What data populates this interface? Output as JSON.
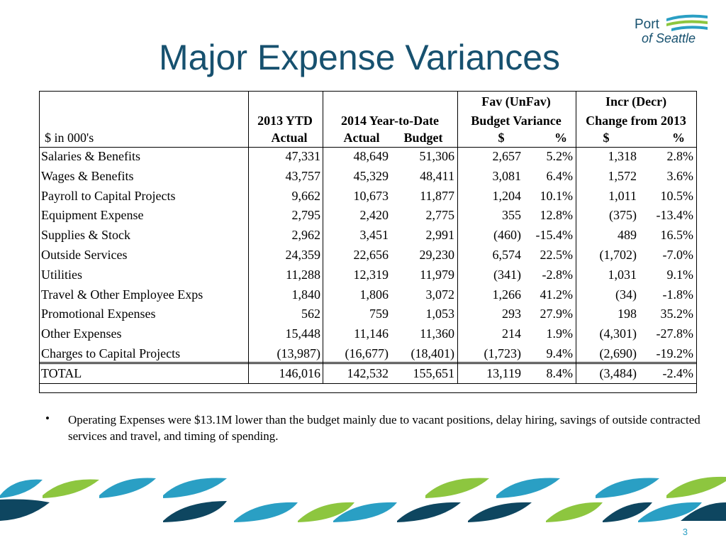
{
  "title": "Major Expense Variances",
  "logo": {
    "line1": "Port",
    "line2": "of Seattle"
  },
  "table": {
    "header": [
      "Fav (UnFav)",
      "Incr (Decr)",
      "2013 YTD",
      "2014 Year-to-Date",
      "Budget Variance",
      "Change from 2013",
      "$ in 000's",
      "Actual",
      "Actual",
      "Budget",
      "$",
      "%",
      "$",
      "%"
    ],
    "rows": [
      [
        "Salaries & Benefits",
        "47,331",
        "48,649",
        "51,306",
        "2,657",
        "5.2%",
        "1,318",
        "2.8%"
      ],
      [
        "Wages & Benefits",
        "43,757",
        "45,329",
        "48,411",
        "3,081",
        "6.4%",
        "1,572",
        "3.6%"
      ],
      [
        "Payroll to Capital Projects",
        "9,662",
        "10,673",
        "11,877",
        "1,204",
        "10.1%",
        "1,011",
        "10.5%"
      ],
      [
        "Equipment Expense",
        "2,795",
        "2,420",
        "2,775",
        "355",
        "12.8%",
        "(375)",
        "-13.4%"
      ],
      [
        "Supplies & Stock",
        "2,962",
        "3,451",
        "2,991",
        "(460)",
        "-15.4%",
        "489",
        "16.5%"
      ],
      [
        "Outside Services",
        "24,359",
        "22,656",
        "29,230",
        "6,574",
        "22.5%",
        "(1,702)",
        "-7.0%"
      ],
      [
        "Utilities",
        "11,288",
        "12,319",
        "11,979",
        "(341)",
        "-2.8%",
        "1,031",
        "9.1%"
      ],
      [
        "Travel & Other Employee Exps",
        "1,840",
        "1,806",
        "3,072",
        "1,266",
        "41.2%",
        "(34)",
        "-1.8%"
      ],
      [
        "Promotional Expenses",
        "562",
        "759",
        "1,053",
        "293",
        "27.9%",
        "198",
        "35.2%"
      ],
      [
        "Other Expenses",
        "15,448",
        "11,146",
        "11,360",
        "214",
        "1.9%",
        "(4,301)",
        "-27.8%"
      ],
      [
        "Charges to Capital Projects",
        "(13,987)",
        "(16,677)",
        "(18,401)",
        "(1,723)",
        "9.4%",
        "(2,690)",
        "-19.2%"
      ]
    ],
    "total": [
      "TOTAL",
      "146,016",
      "142,532",
      "155,651",
      "13,119",
      "8.4%",
      "(3,484)",
      "-2.4%"
    ]
  },
  "bullet": "Operating Expenses were $13.1M lower than the budget mainly due to vacant positions, delay hiring, savings of outside contracted services and travel, and timing of spending.",
  "page_number": "3"
}
